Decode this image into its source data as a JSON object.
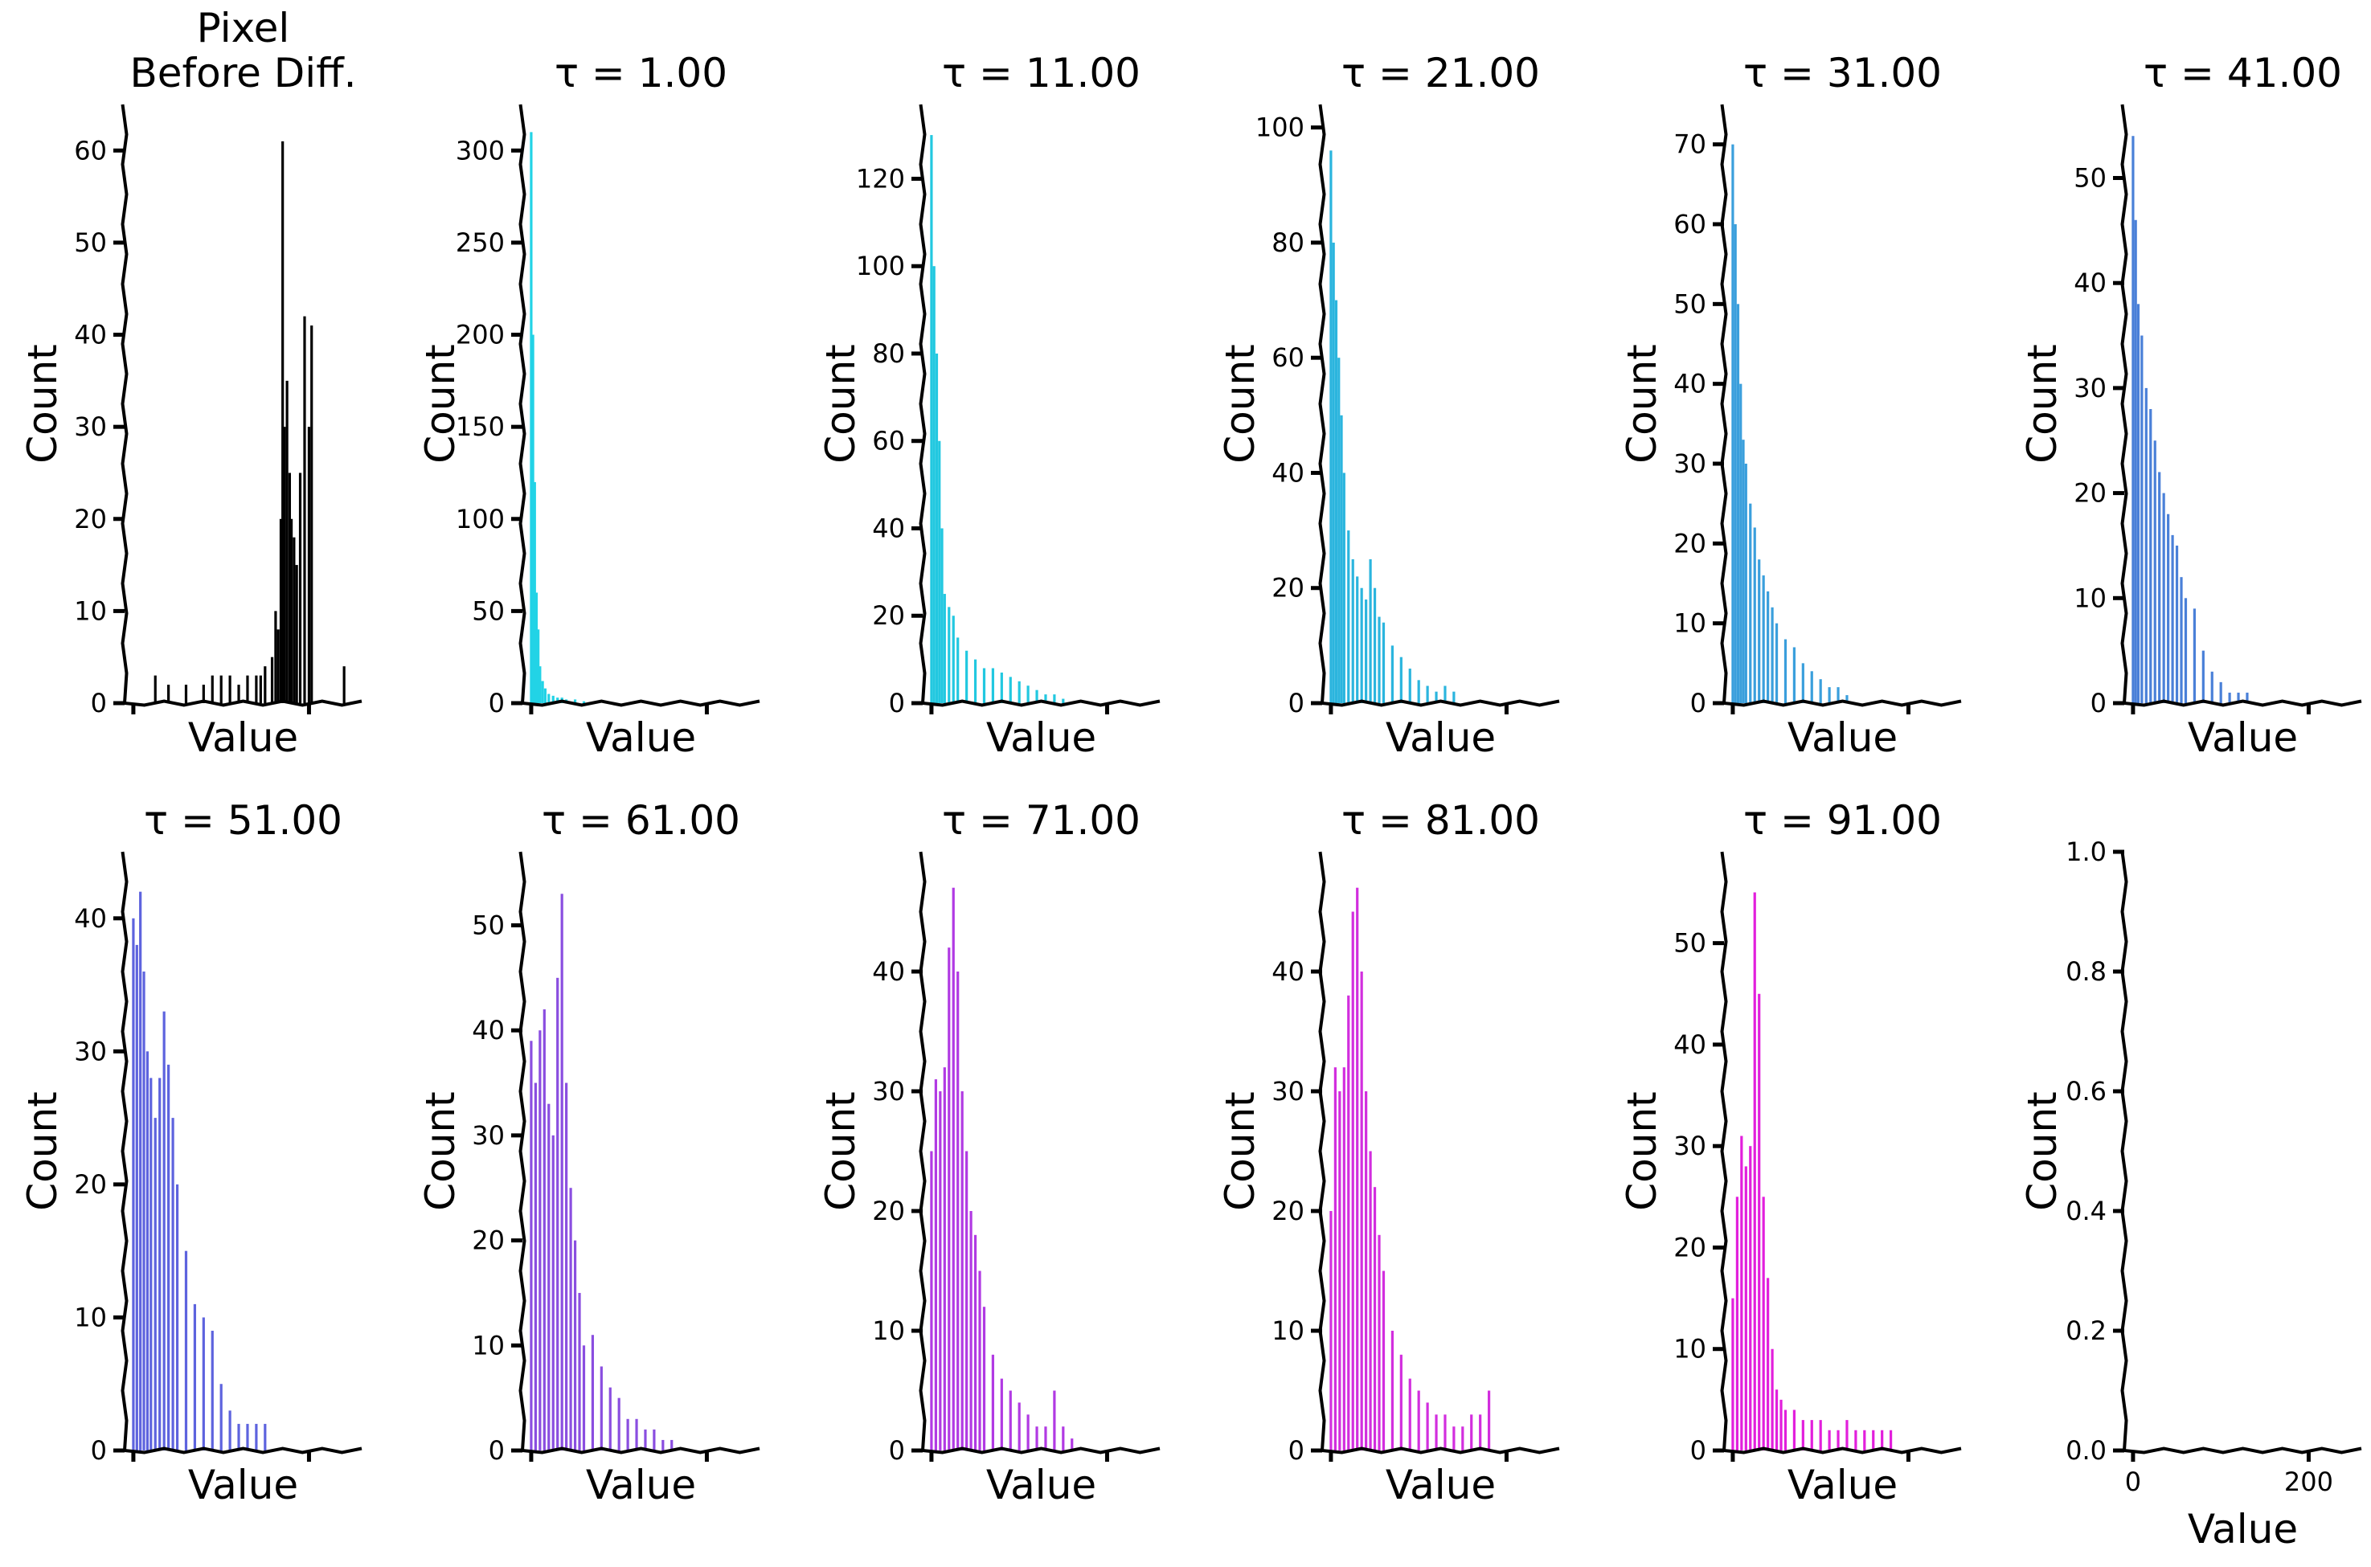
{
  "chart_data": [
    {
      "type": "bar",
      "title": "Pixel\nBefore Diff.",
      "xlabel": "Value",
      "ylabel": "Count",
      "xlim": [
        -10,
        260
      ],
      "ylim": [
        0,
        65
      ],
      "yticks": [
        0,
        10,
        20,
        30,
        40,
        50,
        60
      ],
      "xticks": [
        0,
        200
      ],
      "xticklabels_visible": false,
      "color": "#000000",
      "x": [
        170,
        168,
        172,
        175,
        178,
        180,
        183,
        186,
        190,
        195,
        200,
        203,
        165,
        162,
        158,
        150,
        145,
        140,
        130,
        120,
        110,
        100,
        90,
        80,
        60,
        40,
        25,
        240
      ],
      "values": [
        61,
        20,
        30,
        35,
        25,
        20,
        18,
        15,
        25,
        42,
        30,
        41,
        8,
        10,
        5,
        4,
        3,
        3,
        3,
        2,
        3,
        3,
        3,
        2,
        2,
        2,
        3,
        4
      ]
    },
    {
      "type": "bar",
      "title": "τ =  1.00",
      "xlabel": "Value",
      "ylabel": "Count",
      "xlim": [
        -10,
        260
      ],
      "ylim": [
        0,
        325
      ],
      "yticks": [
        0,
        50,
        100,
        150,
        200,
        250,
        300
      ],
      "xticks": [
        0,
        200
      ],
      "xticklabels_visible": false,
      "color": "#22d3e6",
      "x": [
        0,
        2,
        4,
        6,
        8,
        10,
        13,
        16,
        20,
        25,
        30,
        35,
        40,
        50,
        60
      ],
      "values": [
        310,
        200,
        120,
        60,
        40,
        20,
        12,
        8,
        5,
        4,
        3,
        3,
        2,
        2,
        1
      ]
    },
    {
      "type": "bar",
      "title": "τ =  11.00",
      "xlabel": "Value",
      "ylabel": "Count",
      "xlim": [
        -10,
        260
      ],
      "ylim": [
        0,
        137
      ],
      "yticks": [
        0,
        20,
        40,
        60,
        80,
        100,
        120
      ],
      "xticks": [
        0,
        200
      ],
      "xticklabels_visible": false,
      "color": "#22c8e0",
      "x": [
        0,
        3,
        6,
        9,
        12,
        15,
        20,
        25,
        30,
        40,
        50,
        60,
        70,
        80,
        90,
        100,
        110,
        120,
        130,
        140,
        150
      ],
      "values": [
        130,
        100,
        80,
        60,
        40,
        25,
        22,
        20,
        15,
        12,
        10,
        8,
        8,
        7,
        6,
        5,
        4,
        3,
        2,
        2,
        1
      ]
    },
    {
      "type": "bar",
      "title": "τ =  21.00",
      "xlabel": "Value",
      "ylabel": "Count",
      "xlim": [
        -10,
        260
      ],
      "ylim": [
        0,
        104
      ],
      "yticks": [
        0,
        20,
        40,
        60,
        80,
        100
      ],
      "xticks": [
        0,
        200
      ],
      "xticklabels_visible": false,
      "color": "#2bb5de",
      "x": [
        0,
        3,
        6,
        9,
        12,
        15,
        20,
        25,
        30,
        35,
        40,
        45,
        50,
        55,
        60,
        70,
        80,
        90,
        100,
        110,
        120,
        130,
        140
      ],
      "values": [
        96,
        80,
        70,
        60,
        50,
        40,
        30,
        25,
        22,
        20,
        18,
        25,
        20,
        15,
        14,
        10,
        8,
        6,
        4,
        3,
        2,
        3,
        2
      ]
    },
    {
      "type": "bar",
      "title": "τ =  31.00",
      "xlabel": "Value",
      "ylabel": "Count",
      "xlim": [
        -10,
        260
      ],
      "ylim": [
        0,
        75
      ],
      "yticks": [
        0,
        10,
        20,
        30,
        40,
        50,
        60,
        70
      ],
      "xticks": [
        0,
        200
      ],
      "xticklabels_visible": false,
      "color": "#3a9fdc",
      "x": [
        0,
        3,
        6,
        9,
        12,
        15,
        20,
        25,
        30,
        35,
        40,
        45,
        50,
        60,
        70,
        80,
        90,
        100,
        110,
        120,
        130
      ],
      "values": [
        70,
        60,
        50,
        40,
        33,
        30,
        25,
        22,
        18,
        16,
        14,
        12,
        10,
        8,
        7,
        5,
        4,
        3,
        2,
        2,
        1
      ]
    },
    {
      "type": "bar",
      "title": "τ =  41.00",
      "xlabel": "Value",
      "ylabel": "Count",
      "xlim": [
        -10,
        260
      ],
      "ylim": [
        0,
        57
      ],
      "yticks": [
        0,
        10,
        20,
        30,
        40,
        50
      ],
      "xticks": [
        0,
        200
      ],
      "xticklabels_visible": false,
      "color": "#4a80d8",
      "x": [
        0,
        3,
        6,
        10,
        15,
        20,
        25,
        30,
        35,
        40,
        45,
        50,
        55,
        60,
        70,
        80,
        90,
        100,
        110,
        120,
        130
      ],
      "values": [
        54,
        46,
        38,
        35,
        30,
        28,
        25,
        22,
        20,
        18,
        16,
        15,
        12,
        10,
        9,
        5,
        3,
        2,
        1,
        1,
        1
      ]
    },
    {
      "type": "bar",
      "title": "τ =  51.00",
      "xlabel": "Value",
      "ylabel": "Count",
      "xlim": [
        -10,
        260
      ],
      "ylim": [
        0,
        45
      ],
      "yticks": [
        0,
        10,
        20,
        30,
        40
      ],
      "xticks": [
        0,
        200
      ],
      "xticklabels_visible": false,
      "color": "#5d63de",
      "x": [
        0,
        4,
        8,
        12,
        16,
        20,
        25,
        30,
        35,
        40,
        45,
        50,
        60,
        70,
        80,
        90,
        100,
        110,
        120,
        130,
        140,
        150
      ],
      "values": [
        40,
        38,
        42,
        36,
        30,
        28,
        25,
        28,
        33,
        29,
        25,
        20,
        15,
        11,
        10,
        9,
        5,
        3,
        2,
        2,
        2,
        2
      ]
    },
    {
      "type": "bar",
      "title": "τ =  61.00",
      "xlabel": "Value",
      "ylabel": "Count",
      "xlim": [
        -10,
        260
      ],
      "ylim": [
        0,
        57
      ],
      "yticks": [
        0,
        10,
        20,
        30,
        40,
        50
      ],
      "xticks": [
        0,
        200
      ],
      "xticklabels_visible": false,
      "color": "#8a4ee0",
      "x": [
        0,
        5,
        10,
        15,
        20,
        25,
        30,
        35,
        40,
        45,
        50,
        55,
        60,
        70,
        80,
        90,
        100,
        110,
        120,
        130,
        140,
        150,
        160
      ],
      "values": [
        39,
        35,
        40,
        42,
        33,
        30,
        45,
        53,
        35,
        25,
        20,
        15,
        10,
        11,
        8,
        6,
        5,
        3,
        3,
        2,
        2,
        1,
        1
      ]
    },
    {
      "type": "bar",
      "title": "τ =  71.00",
      "xlabel": "Value",
      "ylabel": "Count",
      "xlim": [
        -10,
        260
      ],
      "ylim": [
        0,
        50
      ],
      "yticks": [
        0,
        10,
        20,
        30,
        40
      ],
      "xticks": [
        0,
        200
      ],
      "xticklabels_visible": false,
      "color": "#b13ae3",
      "x": [
        0,
        5,
        10,
        15,
        20,
        25,
        30,
        35,
        40,
        45,
        50,
        55,
        60,
        70,
        80,
        90,
        100,
        110,
        120,
        130,
        140,
        150,
        160
      ],
      "values": [
        25,
        31,
        30,
        32,
        42,
        47,
        40,
        30,
        25,
        20,
        18,
        15,
        12,
        8,
        6,
        5,
        4,
        3,
        2,
        2,
        5,
        2,
        1
      ]
    },
    {
      "type": "bar",
      "title": "τ =  81.00",
      "xlabel": "Value",
      "ylabel": "Count",
      "xlim": [
        -10,
        260
      ],
      "ylim": [
        0,
        50
      ],
      "yticks": [
        0,
        10,
        20,
        30,
        40
      ],
      "xticks": [
        0,
        200
      ],
      "xticklabels_visible": false,
      "color": "#d22ede",
      "x": [
        0,
        5,
        10,
        15,
        20,
        25,
        30,
        35,
        40,
        45,
        50,
        55,
        60,
        70,
        80,
        90,
        100,
        110,
        120,
        130,
        140,
        150,
        160,
        170,
        180
      ],
      "values": [
        20,
        32,
        30,
        32,
        38,
        45,
        47,
        40,
        30,
        25,
        22,
        18,
        15,
        10,
        8,
        6,
        5,
        4,
        3,
        3,
        2,
        2,
        3,
        3,
        5
      ]
    },
    {
      "type": "bar",
      "title": "τ =  91.00",
      "xlabel": "Value",
      "ylabel": "Count",
      "xlim": [
        -10,
        260
      ],
      "ylim": [
        0,
        59
      ],
      "yticks": [
        0,
        10,
        20,
        30,
        40,
        50
      ],
      "xticks": [
        0,
        200
      ],
      "xticklabels_visible": false,
      "color": "#e21fdc",
      "x": [
        0,
        5,
        10,
        15,
        20,
        25,
        30,
        35,
        40,
        45,
        50,
        55,
        60,
        70,
        80,
        90,
        100,
        110,
        120,
        130,
        140,
        150,
        160,
        170,
        180
      ],
      "values": [
        15,
        25,
        31,
        28,
        30,
        55,
        45,
        25,
        17,
        10,
        6,
        5,
        4,
        4,
        3,
        3,
        3,
        2,
        2,
        3,
        2,
        2,
        2,
        2,
        2
      ]
    },
    {
      "type": "bar",
      "title": "",
      "xlabel": "Value",
      "ylabel": "Count",
      "xlim": [
        -10,
        260
      ],
      "ylim": [
        0,
        1
      ],
      "yticks": [
        0.0,
        0.2,
        0.4,
        0.6,
        0.8,
        1.0
      ],
      "ytick_labels": [
        "0.0",
        "0.2",
        "0.4",
        "0.6",
        "0.8",
        "1.0"
      ],
      "xticks": [
        0,
        200
      ],
      "xticklabels_visible": true,
      "color": "#000000",
      "x": [],
      "values": []
    }
  ]
}
